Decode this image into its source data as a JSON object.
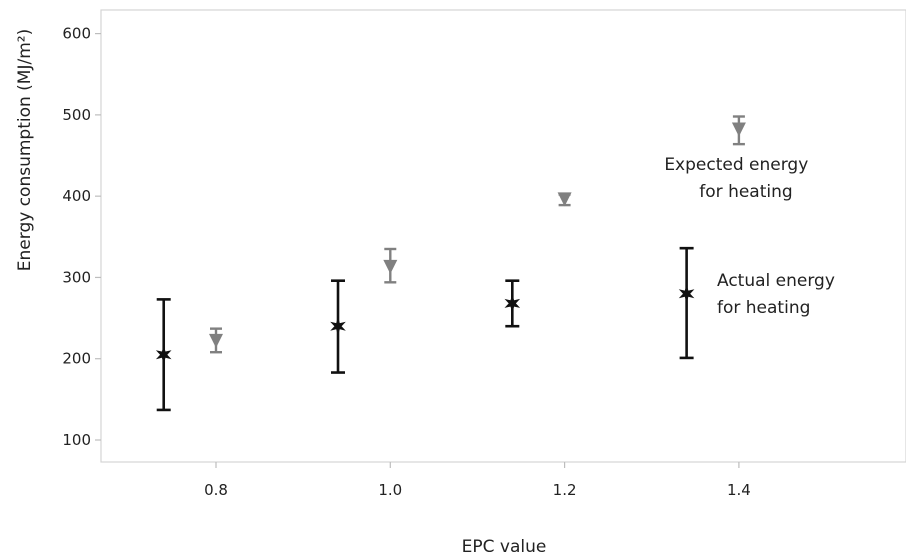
{
  "chart_data": {
    "type": "scatter",
    "xlabel": "EPC value",
    "ylabel": "Energy consumption (MJ/m²)",
    "xlim": [
      0.6,
      1.6
    ],
    "ylim": [
      80,
      620
    ],
    "x_ticks": [
      0.8,
      1.0,
      1.2,
      1.4
    ],
    "x_tick_labels": [
      "0.8",
      "1.0",
      "1.2",
      "1.4"
    ],
    "y_ticks": [
      100,
      200,
      300,
      400,
      500,
      600
    ],
    "y_tick_labels": [
      "100",
      "200",
      "300",
      "400",
      "500",
      "600"
    ],
    "grid": false,
    "series": [
      {
        "name": "Actual energy for heating",
        "marker": "star",
        "color": "#111111",
        "points": [
          {
            "x": 0.74,
            "y": 205,
            "low": 137,
            "high": 273
          },
          {
            "x": 0.94,
            "y": 240,
            "low": 183,
            "high": 296
          },
          {
            "x": 1.14,
            "y": 268,
            "low": 240,
            "high": 296
          },
          {
            "x": 1.34,
            "y": 280,
            "low": 201,
            "high": 336
          }
        ]
      },
      {
        "name": "Expected energy for heating",
        "marker": "triangle-down",
        "color": "#808080",
        "points": [
          {
            "x": 0.8,
            "y": 222,
            "low": 208,
            "high": 237
          },
          {
            "x": 1.0,
            "y": 313,
            "low": 294,
            "high": 335
          },
          {
            "x": 1.2,
            "y": 396,
            "low": 389,
            "high": 402
          },
          {
            "x": 1.4,
            "y": 482,
            "low": 464,
            "high": 498
          }
        ]
      }
    ],
    "annotations": [
      {
        "lines": [
          "Expected energy",
          "for heating"
        ],
        "series": "Expected energy for heating"
      },
      {
        "lines": [
          "Actual energy",
          "for heating"
        ],
        "series": "Actual energy for heating"
      }
    ]
  }
}
